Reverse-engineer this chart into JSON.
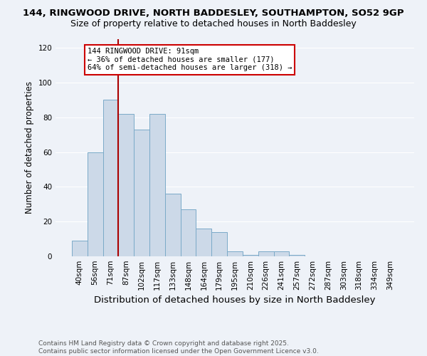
{
  "title1": "144, RINGWOOD DRIVE, NORTH BADDESLEY, SOUTHAMPTON, SO52 9GP",
  "title2": "Size of property relative to detached houses in North Baddesley",
  "xlabel": "Distribution of detached houses by size in North Baddesley",
  "ylabel": "Number of detached properties",
  "categories": [
    "40sqm",
    "56sqm",
    "71sqm",
    "87sqm",
    "102sqm",
    "117sqm",
    "133sqm",
    "148sqm",
    "164sqm",
    "179sqm",
    "195sqm",
    "210sqm",
    "226sqm",
    "241sqm",
    "257sqm",
    "272sqm",
    "287sqm",
    "303sqm",
    "318sqm",
    "334sqm",
    "349sqm"
  ],
  "values": [
    9,
    60,
    90,
    82,
    73,
    82,
    36,
    27,
    16,
    14,
    3,
    1,
    3,
    3,
    1,
    0,
    0,
    0,
    0,
    0,
    0
  ],
  "bar_color": "#ccd9e8",
  "bar_edge_color": "#7aaac8",
  "vline_x": 3,
  "vline_color": "#aa0000",
  "annotation_line1": "144 RINGWOOD DRIVE: 91sqm",
  "annotation_line2": "← 36% of detached houses are smaller (177)",
  "annotation_line3": "64% of semi-detached houses are larger (318) →",
  "box_facecolor": "#ffffff",
  "box_edgecolor": "#cc0000",
  "ylim": [
    0,
    125
  ],
  "yticks": [
    0,
    20,
    40,
    60,
    80,
    100,
    120
  ],
  "bg_color": "#eef2f8",
  "footnote": "Contains HM Land Registry data © Crown copyright and database right 2025.\nContains public sector information licensed under the Open Government Licence v3.0.",
  "grid_color": "#ffffff",
  "title1_fontsize": 9.5,
  "title2_fontsize": 9.0,
  "ylabel_fontsize": 8.5,
  "xlabel_fontsize": 9.5,
  "tick_fontsize": 7.5,
  "footnote_fontsize": 6.5
}
